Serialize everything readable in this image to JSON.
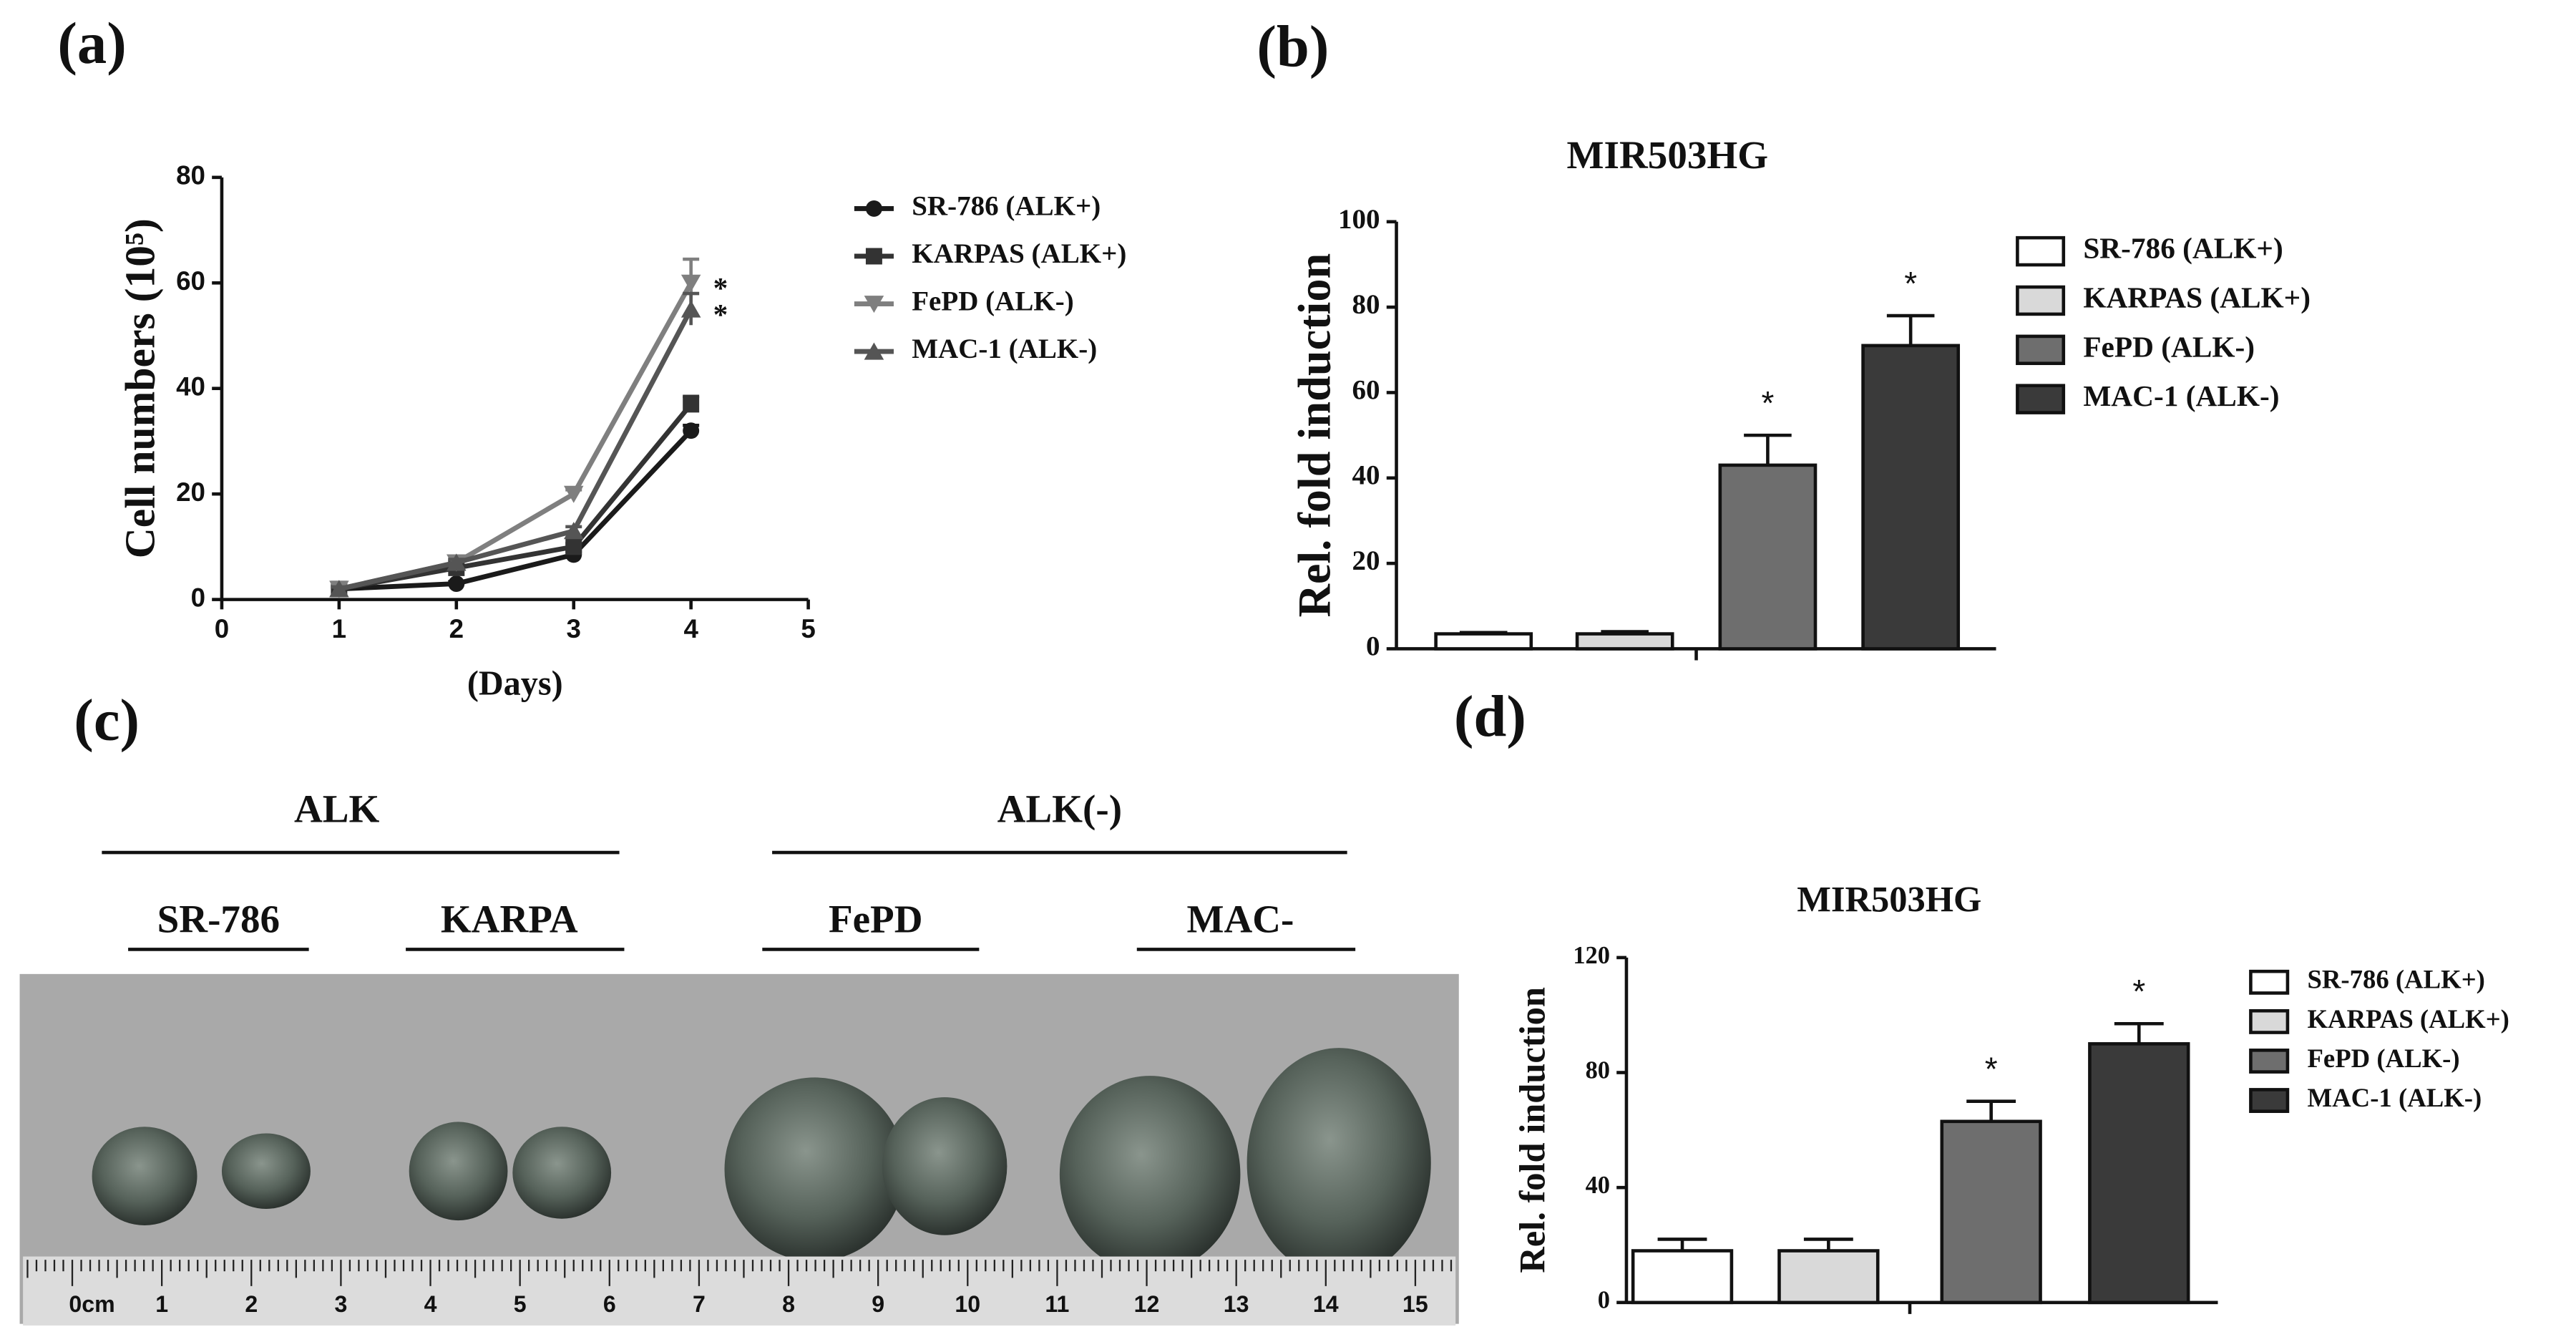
{
  "chart_data": [
    {
      "type": "line",
      "panel_label": "(a)",
      "y_label": "Cell numbers (10⁵)",
      "x_label": "(Days)",
      "x": [
        1,
        2,
        3,
        4
      ],
      "xlim": [
        0,
        5
      ],
      "xticks": [
        0,
        1,
        2,
        3,
        4,
        5
      ],
      "ylim": [
        0,
        80
      ],
      "yticks": [
        0,
        20,
        40,
        60,
        80
      ],
      "series": [
        {
          "name": "SR-786 (ALK+)",
          "color": "#1a1a1a",
          "marker": "circle",
          "values": [
            2,
            3,
            8.5,
            32
          ],
          "errors": [
            0.4,
            0.4,
            0.6,
            1
          ],
          "significance": [
            null,
            null,
            null,
            null
          ]
        },
        {
          "name": "KARPAS (ALK+)",
          "color": "#333333",
          "marker": "square",
          "values": [
            2,
            6,
            10,
            37
          ],
          "errors": [
            0.4,
            0.5,
            0.6,
            1.5
          ],
          "significance": [
            null,
            null,
            null,
            null
          ]
        },
        {
          "name": "FePD (ALK-)",
          "color": "#7f7f7f",
          "marker": "triangle-down",
          "values": [
            2,
            7,
            20,
            60
          ],
          "errors": [
            0.4,
            0.6,
            0.8,
            4.5
          ],
          "significance": [
            null,
            null,
            null,
            "*"
          ]
        },
        {
          "name": "MAC-1 (ALK-)",
          "color": "#555555",
          "marker": "triangle-up",
          "values": [
            2,
            7,
            13,
            55
          ],
          "errors": [
            0.4,
            0.6,
            0.8,
            3
          ],
          "significance": [
            null,
            null,
            null,
            "*"
          ]
        }
      ]
    },
    {
      "type": "bar",
      "panel_label": "(b)",
      "title": "MIR503HG",
      "y_label": "Rel. fold induction",
      "ylim": [
        0,
        100
      ],
      "yticks": [
        0,
        20,
        40,
        60,
        80,
        100
      ],
      "series": [
        {
          "name": "SR-786 (ALK+)",
          "color": "#ffffff",
          "values": [
            3.5
          ],
          "errors": [
            0.3
          ],
          "significance": [
            null
          ]
        },
        {
          "name": "KARPAS (ALK+)",
          "color": "#d9d9d9",
          "values": [
            3.5
          ],
          "errors": [
            0.5
          ],
          "significance": [
            null
          ]
        },
        {
          "name": "FePD (ALK-)",
          "color": "#6e6e6e",
          "values": [
            43
          ],
          "errors": [
            7
          ],
          "significance": [
            "*"
          ]
        },
        {
          "name": "MAC-1 (ALK-)",
          "color": "#3a3a3a",
          "values": [
            71
          ],
          "errors": [
            7
          ],
          "significance": [
            "*"
          ]
        }
      ]
    },
    {
      "type": "bar",
      "panel_label": "(d)",
      "title": "MIR503HG",
      "y_label": "Rel. fold induction",
      "ylim": [
        0,
        120
      ],
      "yticks": [
        0,
        40,
        80,
        120
      ],
      "series": [
        {
          "name": "SR-786 (ALK+)",
          "color": "#ffffff",
          "values": [
            18
          ],
          "errors": [
            4
          ],
          "significance": [
            null
          ]
        },
        {
          "name": "KARPAS (ALK+)",
          "color": "#d9d9d9",
          "values": [
            18
          ],
          "errors": [
            4
          ],
          "significance": [
            null
          ]
        },
        {
          "name": "FePD (ALK-)",
          "color": "#6e6e6e",
          "values": [
            63
          ],
          "errors": [
            7
          ],
          "significance": [
            "*"
          ]
        },
        {
          "name": "MAC-1 (ALK-)",
          "color": "#3a3a3a",
          "values": [
            90
          ],
          "errors": [
            7
          ],
          "significance": [
            "*"
          ]
        }
      ]
    }
  ],
  "photo": {
    "panel_label": "(c)",
    "group_labels": [
      "ALK",
      "ALK(-)"
    ],
    "sample_labels": [
      "SR-786",
      "KARPA",
      "FePD",
      "MAC-"
    ],
    "ruler_labels": [
      "0cm",
      "1",
      "2",
      "3",
      "4",
      "5",
      "6",
      "7",
      "8",
      "9",
      "10",
      "11",
      "12",
      "13",
      "14",
      "15"
    ]
  }
}
